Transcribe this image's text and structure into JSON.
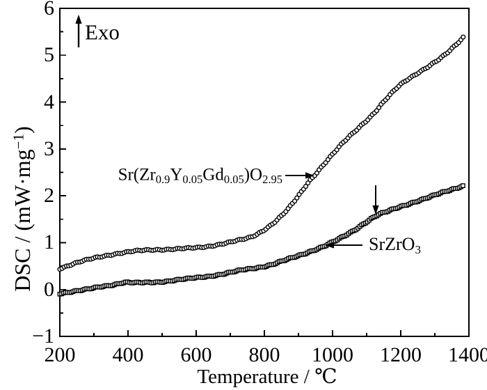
{
  "figure": {
    "background": "#ffffff",
    "ink": "#000000"
  },
  "chart_data": {
    "type": "scatter",
    "title": "",
    "xlabel": "Temperature / ℃",
    "ylabel": "DSC / (mW·mg−1)",
    "ylabel_parts": [
      {
        "t": "DSC / (mW·mg"
      },
      {
        "t": "−1",
        "sup": true
      },
      {
        "t": ")"
      }
    ],
    "xlim": [
      200,
      1400
    ],
    "ylim": [
      -1,
      6
    ],
    "x_ticks": [
      200,
      400,
      600,
      800,
      1000,
      1200,
      1400
    ],
    "x_tick_labels": [
      "200",
      "400",
      "600",
      "800",
      "1000",
      "1200",
      "1400"
    ],
    "x_minor_ticks": [
      300,
      500,
      700,
      900,
      1100,
      1300
    ],
    "y_ticks": [
      -1,
      0,
      1,
      2,
      3,
      4,
      5,
      6
    ],
    "y_tick_labels": [
      "−1",
      "0",
      "1",
      "2",
      "3",
      "4",
      "5",
      "6"
    ],
    "y_minor_ticks": [
      -0.5,
      0.5,
      1.5,
      2.5,
      3.5,
      4.5,
      5.5
    ],
    "grid": false,
    "legend_position": "inline-annotations",
    "annotations": {
      "exo_text": "Exo",
      "exo_arrow_direction": "up",
      "upper_curve_arrow": "right-pointing-at-curve-~945C",
      "lower_curve_arrow": "left-pointing-at-curve-~980C",
      "transition_arrow": "down-pointing-at-lower-curve-~1130C"
    },
    "series": [
      {
        "name": "Sr(Zr0.9Y0.05Gd0.05)O2.95",
        "marker": "circle",
        "label_parts": [
          {
            "t": "Sr(Zr"
          },
          {
            "t": "0.9",
            "sub": true
          },
          {
            "t": "Y"
          },
          {
            "t": "0.05",
            "sub": true
          },
          {
            "t": "Gd"
          },
          {
            "t": "0.05",
            "sub": true
          },
          {
            "t": ")O"
          },
          {
            "t": "2.95",
            "sub": true
          }
        ],
        "points": [
          [
            200,
            0.45
          ],
          [
            240,
            0.55
          ],
          [
            280,
            0.63
          ],
          [
            320,
            0.7
          ],
          [
            360,
            0.76
          ],
          [
            400,
            0.8
          ],
          [
            440,
            0.83
          ],
          [
            480,
            0.85
          ],
          [
            520,
            0.86
          ],
          [
            560,
            0.87
          ],
          [
            600,
            0.89
          ],
          [
            640,
            0.93
          ],
          [
            680,
            0.98
          ],
          [
            720,
            1.04
          ],
          [
            760,
            1.12
          ],
          [
            800,
            1.28
          ],
          [
            840,
            1.5
          ],
          [
            870,
            1.72
          ],
          [
            900,
            2.0
          ],
          [
            930,
            2.3
          ],
          [
            960,
            2.55
          ],
          [
            1000,
            2.88
          ],
          [
            1040,
            3.2
          ],
          [
            1080,
            3.48
          ],
          [
            1120,
            3.75
          ],
          [
            1160,
            4.08
          ],
          [
            1200,
            4.38
          ],
          [
            1240,
            4.58
          ],
          [
            1280,
            4.75
          ],
          [
            1320,
            4.95
          ],
          [
            1355,
            5.18
          ],
          [
            1385,
            5.4
          ]
        ]
      },
      {
        "name": "SrZrO3",
        "marker": "square",
        "label_parts": [
          {
            "t": "SrZrO"
          },
          {
            "t": "3",
            "sub": true
          }
        ],
        "points": [
          [
            200,
            -0.08
          ],
          [
            240,
            -0.04
          ],
          [
            280,
            0.0
          ],
          [
            320,
            0.06
          ],
          [
            360,
            0.11
          ],
          [
            390,
            0.15
          ],
          [
            420,
            0.14
          ],
          [
            460,
            0.15
          ],
          [
            500,
            0.17
          ],
          [
            540,
            0.2
          ],
          [
            580,
            0.23
          ],
          [
            620,
            0.27
          ],
          [
            660,
            0.31
          ],
          [
            700,
            0.36
          ],
          [
            740,
            0.42
          ],
          [
            780,
            0.47
          ],
          [
            820,
            0.53
          ],
          [
            860,
            0.62
          ],
          [
            900,
            0.72
          ],
          [
            940,
            0.83
          ],
          [
            980,
            0.94
          ],
          [
            1020,
            1.08
          ],
          [
            1060,
            1.25
          ],
          [
            1100,
            1.45
          ],
          [
            1130,
            1.58
          ],
          [
            1160,
            1.66
          ],
          [
            1200,
            1.77
          ],
          [
            1240,
            1.87
          ],
          [
            1280,
            1.96
          ],
          [
            1320,
            2.06
          ],
          [
            1360,
            2.16
          ],
          [
            1385,
            2.22
          ]
        ]
      }
    ]
  }
}
